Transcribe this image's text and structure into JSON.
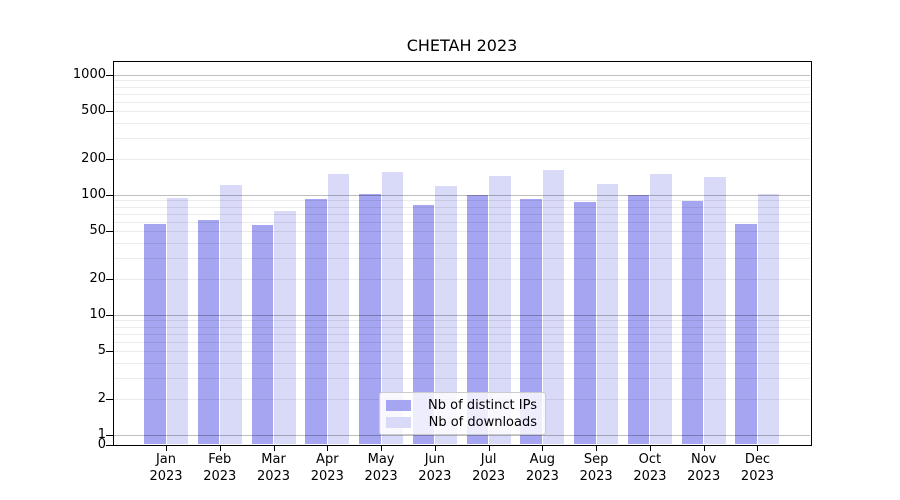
{
  "figure": {
    "title": "CHETAH 2023"
  },
  "chart_data": {
    "type": "bar",
    "title": "CHETAH 2023",
    "categories": [
      "Jan 2023",
      "Feb 2023",
      "Mar 2023",
      "Apr 2023",
      "May 2023",
      "Jun 2023",
      "Jul 2023",
      "Aug 2023",
      "Sep 2023",
      "Oct 2023",
      "Nov 2023",
      "Dec 2023"
    ],
    "series": [
      {
        "name": "Nb of distinct IPs",
        "color": "#a5a5f2",
        "values": [
          57,
          62,
          56,
          92,
          102,
          82,
          100,
          92,
          88,
          100,
          89,
          57
        ]
      },
      {
        "name": "Nb of downloads",
        "color": "#d9d9f8",
        "values": [
          95,
          120,
          73,
          149,
          156,
          118,
          145,
          162,
          124,
          150,
          141,
          102
        ]
      }
    ],
    "xlabel": "",
    "ylabel": "",
    "y_axis": {
      "scale": "symlog",
      "ticks": [
        1000,
        500,
        200,
        100,
        50,
        20,
        10,
        5,
        2,
        1,
        0
      ],
      "ylim": [
        0,
        1300
      ]
    },
    "grid": {
      "shown": true,
      "major_color": "rgba(0,0,0,0.26)",
      "minor_color": "rgba(0,0,0,0.08)"
    },
    "legend": {
      "position": "lower center"
    }
  }
}
